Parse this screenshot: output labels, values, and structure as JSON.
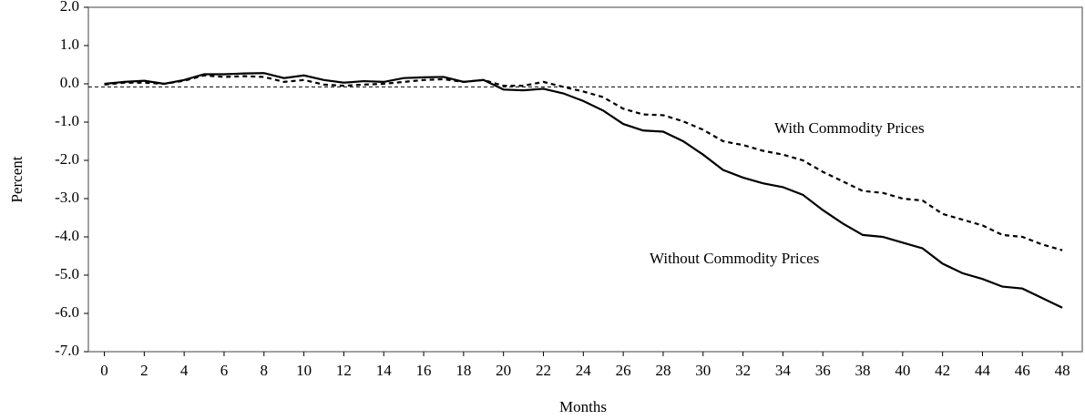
{
  "chart_data": {
    "type": "line",
    "x_label": "Months",
    "y_label": "Percent",
    "x": [
      0,
      1,
      2,
      3,
      4,
      5,
      6,
      7,
      8,
      9,
      10,
      11,
      12,
      13,
      14,
      15,
      16,
      17,
      18,
      19,
      20,
      21,
      22,
      23,
      24,
      25,
      26,
      27,
      28,
      29,
      30,
      31,
      32,
      33,
      34,
      35,
      36,
      37,
      38,
      39,
      40,
      41,
      42,
      43,
      44,
      45,
      46,
      47,
      48
    ],
    "series": [
      {
        "name": "Without Commodity Prices",
        "color": "#000000",
        "dash": "solid",
        "values": [
          0.0,
          0.05,
          0.08,
          0.0,
          0.1,
          0.25,
          0.25,
          0.27,
          0.28,
          0.15,
          0.22,
          0.1,
          0.03,
          0.07,
          0.05,
          0.15,
          0.17,
          0.18,
          0.05,
          0.1,
          -0.15,
          -0.17,
          -0.13,
          -0.25,
          -0.45,
          -0.7,
          -1.05,
          -1.22,
          -1.25,
          -1.5,
          -1.85,
          -2.25,
          -2.45,
          -2.6,
          -2.7,
          -2.9,
          -3.3,
          -3.65,
          -3.95,
          -4.0,
          -4.15,
          -4.3,
          -4.7,
          -4.95,
          -5.1,
          -5.3,
          -5.35,
          -5.6,
          -5.85
        ]
      },
      {
        "name": "With Commodity Prices",
        "color": "#000000",
        "dash": "dashed",
        "values": [
          -0.02,
          0.03,
          0.03,
          0.0,
          0.08,
          0.22,
          0.18,
          0.2,
          0.18,
          0.05,
          0.1,
          -0.02,
          -0.05,
          -0.02,
          0.0,
          0.05,
          0.1,
          0.12,
          0.05,
          0.1,
          -0.05,
          -0.05,
          0.05,
          -0.08,
          -0.2,
          -0.35,
          -0.65,
          -0.8,
          -0.82,
          -0.98,
          -1.2,
          -1.5,
          -1.6,
          -1.75,
          -1.85,
          -2.0,
          -2.3,
          -2.55,
          -2.8,
          -2.85,
          -3.0,
          -3.05,
          -3.4,
          -3.55,
          -3.7,
          -3.95,
          -4.0,
          -4.2,
          -4.35
        ]
      }
    ],
    "reference_line": -0.08,
    "xlim": [
      -0.8,
      49
    ],
    "xticks": [
      0,
      2,
      4,
      6,
      8,
      10,
      12,
      14,
      16,
      18,
      20,
      22,
      24,
      26,
      28,
      30,
      32,
      34,
      36,
      38,
      40,
      42,
      44,
      46,
      48
    ],
    "ylim": [
      -7,
      2
    ],
    "yticks": [
      {
        "value": 2,
        "label": "2.0"
      },
      {
        "value": 1,
        "label": "1.0"
      },
      {
        "value": 0,
        "label": "0.0"
      },
      {
        "value": -1,
        "label": "-1.0"
      },
      {
        "value": -2,
        "label": "-2.0"
      },
      {
        "value": -3,
        "label": "-3.0"
      },
      {
        "value": -4,
        "label": "-4.0"
      },
      {
        "value": -5,
        "label": "-5.0"
      },
      {
        "value": -6,
        "label": "-6.0"
      },
      {
        "value": -7,
        "label": "-7.0"
      }
    ],
    "grid": false
  }
}
